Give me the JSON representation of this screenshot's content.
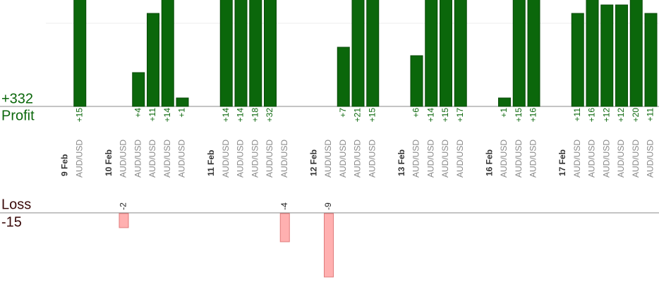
{
  "chart_data": {
    "type": "bar",
    "profit": {
      "title": "Profit",
      "total": 332,
      "total_label": "+332",
      "color": "#0b670b"
    },
    "loss": {
      "title": "Loss",
      "total": -15,
      "color": "#ffb0b0"
    },
    "columns": [
      {
        "date": "9 Feb"
      },
      {
        "symbol": "AUD/USD",
        "value": 15,
        "label": "+15"
      },
      null,
      {
        "date": "10 Feb"
      },
      {
        "symbol": "AUD/USD",
        "value": -2
      },
      {
        "symbol": "AUD/USD",
        "value": 4,
        "label": "+4"
      },
      {
        "symbol": "AUD/USD",
        "value": 11,
        "label": "+11"
      },
      {
        "symbol": "AUD/USD",
        "value": 14,
        "label": "+14"
      },
      {
        "symbol": "AUD/USD",
        "value": 1,
        "label": "+1"
      },
      null,
      {
        "date": "11 Feb"
      },
      {
        "symbol": "AUD/USD",
        "value": 14,
        "label": "+14"
      },
      {
        "symbol": "AUD/USD",
        "value": 14,
        "label": "+14"
      },
      {
        "symbol": "AUD/USD",
        "value": 18,
        "label": "+18"
      },
      {
        "symbol": "AUD/USD",
        "value": 32,
        "label": "+32"
      },
      {
        "symbol": "AUD/USD",
        "value": -4
      },
      null,
      {
        "date": "12 Feb"
      },
      {
        "symbol": "AUD/USD",
        "value": -9
      },
      {
        "symbol": "AUD/USD",
        "value": 7,
        "label": "+7"
      },
      {
        "symbol": "AUD/USD",
        "value": 21,
        "label": "+21"
      },
      {
        "symbol": "AUD/USD",
        "value": 15,
        "label": "+15"
      },
      null,
      {
        "date": "13 Feb"
      },
      {
        "symbol": "AUD/USD",
        "value": 6,
        "label": "+6"
      },
      {
        "symbol": "AUD/USD",
        "value": 14,
        "label": "+14"
      },
      {
        "symbol": "AUD/USD",
        "value": 15,
        "label": "+15"
      },
      {
        "symbol": "AUD/USD",
        "value": 17,
        "label": "+17"
      },
      null,
      {
        "date": "16 Feb"
      },
      {
        "symbol": "AUD/USD",
        "value": 1,
        "label": "+1"
      },
      {
        "symbol": "AUD/USD",
        "value": 15,
        "label": "+15"
      },
      {
        "symbol": "AUD/USD",
        "value": 16,
        "label": "+16"
      },
      null,
      {
        "date": "17 Feb"
      },
      {
        "symbol": "AUD/USD",
        "value": 11,
        "label": "+11"
      },
      {
        "symbol": "AUD/USD",
        "value": 16,
        "label": "+16"
      },
      {
        "symbol": "AUD/USD",
        "value": 12,
        "label": "+12"
      },
      {
        "symbol": "AUD/USD",
        "value": 12,
        "label": "+12"
      },
      {
        "symbol": "AUD/USD",
        "value": 20,
        "label": "+20"
      },
      {
        "symbol": "AUD/USD",
        "value": 11,
        "label": "+11"
      }
    ]
  }
}
